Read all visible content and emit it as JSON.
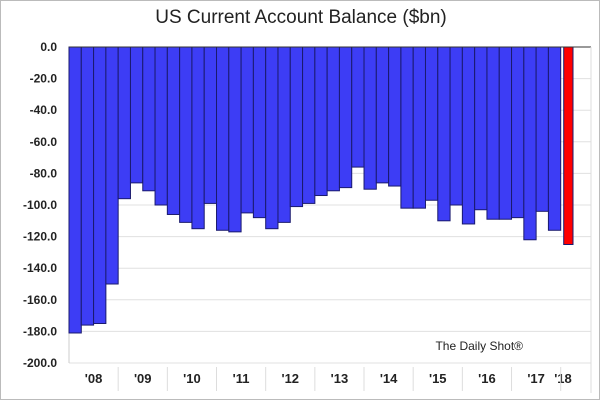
{
  "chart_data": {
    "type": "bar",
    "title": "US Current Account Balance ($bn)",
    "watermark": "The Daily Shot®",
    "ylim": [
      -200,
      0
    ],
    "yticks": [
      "0.0",
      "-20.0",
      "-40.0",
      "-60.0",
      "-80.0",
      "-100.0",
      "-120.0",
      "-140.0",
      "-160.0",
      "-180.0",
      "-200.0"
    ],
    "ytick_values": [
      0,
      -20,
      -40,
      -60,
      -80,
      -100,
      -120,
      -140,
      -160,
      -180,
      -200
    ],
    "xtick_labels": [
      "'08",
      "'09",
      "'10",
      "'11",
      "'12",
      "'13",
      "'14",
      "'15",
      "'16",
      "'17",
      "'18"
    ],
    "grid": true,
    "colors": {
      "bar": "#3d3df5",
      "highlight": "#ff0000",
      "edge": "#1a1a6e"
    },
    "values": [
      -181,
      -176,
      -175,
      -150,
      -96,
      -86,
      -91,
      -100,
      -106,
      -111,
      -115,
      -99,
      -116,
      -117,
      -105,
      -108,
      -115,
      -111,
      -101,
      -99,
      -94,
      -91,
      -89,
      -76,
      -90,
      -86,
      -88,
      -102,
      -102,
      -97,
      -110,
      -100,
      -112,
      -103,
      -109,
      -109,
      -108,
      -122,
      -104,
      -116,
      -125
    ],
    "highlight_last": true
  }
}
